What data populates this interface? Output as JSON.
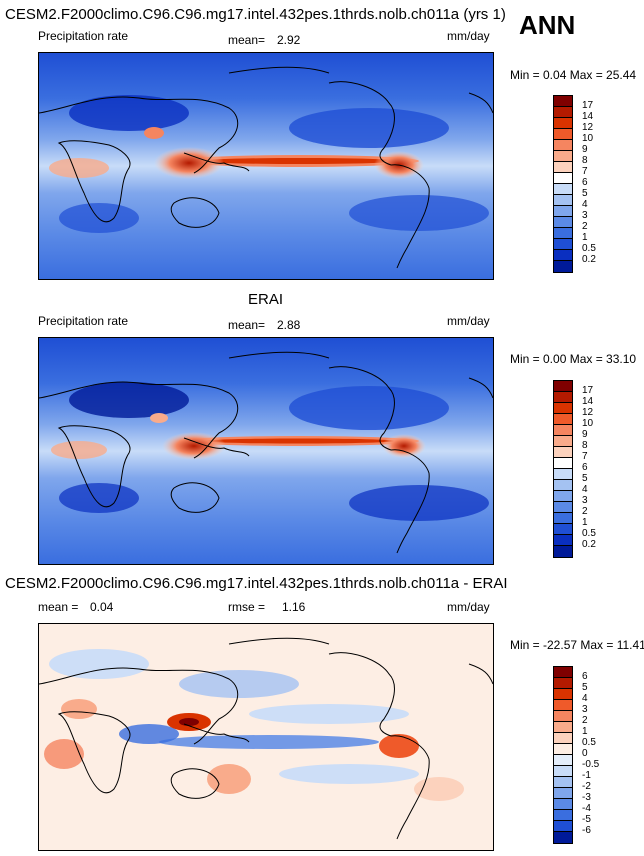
{
  "season": "ANN",
  "panels": [
    {
      "title": "CESM2.F2000climo.C96.C96.mg17.intel.432pes.1thrds.nolb.ch011a (yrs 1)",
      "variable": "Precipitation rate",
      "stat1_label": "mean=",
      "stat1_value": "2.92",
      "units": "mm/day",
      "minmax": "Min =   0.04 Max =  25.44",
      "colorbar": {
        "labels": [
          "17",
          "14",
          "12",
          "10",
          "9",
          "8",
          "7",
          "6",
          "5",
          "4",
          "3",
          "2",
          "1",
          "0.5",
          "0.2"
        ],
        "colors": [
          "#7f0000",
          "#b31a00",
          "#d93300",
          "#ef5a2a",
          "#f58560",
          "#f9ab8b",
          "#fcd2bd",
          "#ffffff",
          "#c8dcf8",
          "#a4c2f2",
          "#7fa6ec",
          "#5b8ae6",
          "#3a6edf",
          "#1f4fd4",
          "#0a2fc0",
          "#001a99"
        ]
      }
    },
    {
      "title": "ERAI",
      "variable": "Precipitation rate",
      "stat1_label": "mean=",
      "stat1_value": "2.88",
      "units": "mm/day",
      "minmax": "Min =   0.00 Max =  33.10",
      "colorbar": {
        "labels": [
          "17",
          "14",
          "12",
          "10",
          "9",
          "8",
          "7",
          "6",
          "5",
          "4",
          "3",
          "2",
          "1",
          "0.5",
          "0.2"
        ],
        "colors": [
          "#7f0000",
          "#b31a00",
          "#d93300",
          "#ef5a2a",
          "#f58560",
          "#f9ab8b",
          "#fcd2bd",
          "#ffffff",
          "#c8dcf8",
          "#a4c2f2",
          "#7fa6ec",
          "#5b8ae6",
          "#3a6edf",
          "#1f4fd4",
          "#0a2fc0",
          "#001a99"
        ]
      }
    },
    {
      "title": "CESM2.F2000climo.C96.C96.mg17.intel.432pes.1thrds.nolb.ch011a - ERAI",
      "stat1_label": "mean =",
      "stat1_value": "0.04",
      "stat2_label": "rmse =",
      "stat2_value": "1.16",
      "units": "mm/day",
      "minmax": "Min = -22.57 Max =  11.41",
      "colorbar": {
        "labels": [
          "6",
          "5",
          "4",
          "3",
          "2",
          "1",
          "0.5",
          "0",
          "-0.5",
          "-1",
          "-2",
          "-3",
          "-4",
          "-5",
          "-6"
        ],
        "colors": [
          "#7f0000",
          "#b31a00",
          "#d93300",
          "#ef5a2a",
          "#f58560",
          "#f9ab8b",
          "#fcd2bd",
          "#fdeee4",
          "#e4eefb",
          "#c8dcf8",
          "#a4c2f2",
          "#7fa6ec",
          "#5b8ae6",
          "#3a6edf",
          "#1f4fd4",
          "#001a99"
        ]
      }
    }
  ]
}
